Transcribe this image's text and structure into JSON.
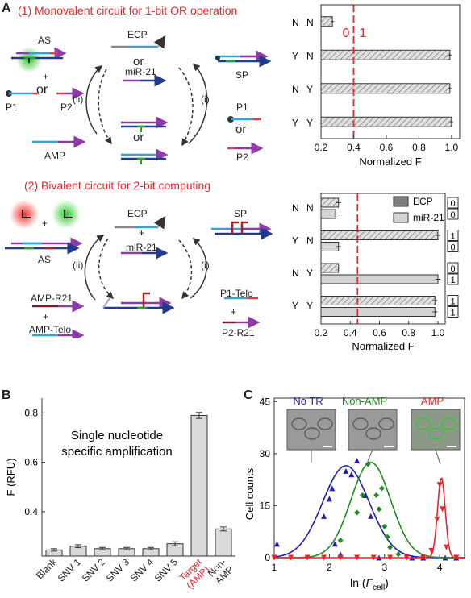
{
  "panel_a": {
    "letter": "A",
    "title1": "(1) Monovalent circuit for 1-bit  OR operation",
    "title2": "(2) Bivalent circuit for 2-bit computing",
    "diagram1": {
      "as": "AS",
      "plus": "+",
      "or1": "or",
      "p1": "P1",
      "p2": "P2",
      "amp": "AMP",
      "ecp": "ECP",
      "or2": "or",
      "mir": "miR-21",
      "sp": "SP",
      "p1r": "P1",
      "or3": "or",
      "p2r": "P2",
      "step_ii": "(ii)",
      "step_i": "(i)",
      "or_mid": "or"
    },
    "diagram2": {
      "as": "AS",
      "plus1": "+",
      "ecp": "ECP",
      "plus2": "+",
      "mir": "miR-21",
      "sp": "SP",
      "amp_r21": "AMP-R21",
      "plus3": "+",
      "amp_telo": "AMP-Telo",
      "p1_telo": "P1-Telo",
      "plus4": "+",
      "p2_r21": "P2-R21",
      "step_ii": "(ii)",
      "step_i": "(i)"
    }
  },
  "panel_b": {
    "letter": "B"
  },
  "panel_c": {
    "letter": "C"
  },
  "chart_data": [
    {
      "type": "bar",
      "orientation": "horizontal",
      "categories": [
        [
          "Y",
          "Y"
        ],
        [
          "N",
          "Y"
        ],
        [
          "Y",
          "N"
        ],
        [
          "N",
          "N"
        ]
      ],
      "values": [
        1.0,
        0.99,
        0.99,
        0.27
      ],
      "errors": [
        0.01,
        0.01,
        0.01,
        0.01
      ],
      "xlabel": "Normalized F",
      "xticks": [
        "0.2",
        "0.4",
        "0.6",
        "0.8",
        "1.0"
      ],
      "xlim": [
        0.2,
        1.05
      ],
      "threshold": 0.4,
      "threshold_labels": [
        "0",
        "1"
      ],
      "bar_color": "#d9d9d9"
    },
    {
      "type": "bar",
      "orientation": "horizontal",
      "categories": [
        [
          "Y",
          "Y"
        ],
        [
          "N",
          "Y"
        ],
        [
          "Y",
          "N"
        ],
        [
          "N",
          "N"
        ]
      ],
      "series": [
        {
          "name": "ECP",
          "color": "#888888",
          "values": [
            0.98,
            0.32,
            1.0,
            0.32
          ],
          "bits": [
            "1",
            "0",
            "1",
            "0"
          ]
        },
        {
          "name": "miR-21",
          "color": "#d4d4d4",
          "values": [
            0.98,
            1.0,
            0.32,
            0.3
          ],
          "bits": [
            "1",
            "1",
            "0",
            "0"
          ]
        }
      ],
      "xlabel": "Normalized F",
      "xticks": [
        "0.2",
        "0.4",
        "0.6",
        "0.8",
        "1.0"
      ],
      "xlim": [
        0.2,
        1.05
      ],
      "threshold": 0.45
    },
    {
      "type": "bar",
      "categories": [
        "Blank",
        "SNV 1",
        "SNV 2",
        "SNV 3",
        "SNV 4",
        "SNV 5",
        "Target (AMP)",
        "Non-AMP"
      ],
      "category_lines": [
        [
          "Blank"
        ],
        [
          "SNV 1"
        ],
        [
          "SNV 2"
        ],
        [
          "SNV 3"
        ],
        [
          "SNV 4"
        ],
        [
          "SNV 5"
        ],
        [
          "Target",
          "(AMP)"
        ],
        [
          "Non-",
          "AMP"
        ]
      ],
      "highlight": [
        6
      ],
      "values": [
        0.245,
        0.26,
        0.25,
        0.25,
        0.25,
        0.27,
        0.79,
        0.33
      ],
      "errors": [
        0.005,
        0.006,
        0.005,
        0.005,
        0.005,
        0.008,
        0.012,
        0.008
      ],
      "ylabel": "F (RFU)",
      "yticks": [
        "0.4",
        "0.6",
        "0.8"
      ],
      "ylim": [
        0.22,
        0.86
      ],
      "annotation": [
        "Single nucleotide",
        "specific amplification"
      ],
      "bar_color": "#d9d9d9"
    },
    {
      "type": "scatter",
      "xlabel": "ln (F_cell)",
      "ylabel": "Cell counts",
      "xticks": [
        "1",
        "2",
        "3",
        "4"
      ],
      "yticks": [
        "0",
        "15",
        "30",
        "45"
      ],
      "xlim": [
        1,
        4.45
      ],
      "ylim": [
        0,
        46
      ],
      "series": [
        {
          "name": "No TR",
          "color": "#1f1fb4",
          "marker": "triangle",
          "fit": {
            "mu": 2.3,
            "sigma": 0.42,
            "amp": 26.5
          },
          "points": [
            [
              1.05,
              4
            ],
            [
              1.9,
              12
            ],
            [
              2.0,
              17
            ],
            [
              2.05,
              20
            ],
            [
              2.1,
              4
            ],
            [
              2.2,
              1
            ],
            [
              2.3,
              25
            ],
            [
              2.4,
              24
            ],
            [
              2.5,
              28
            ],
            [
              2.65,
              18
            ],
            [
              2.75,
              12
            ],
            [
              2.9,
              0
            ],
            [
              3.5,
              0
            ],
            [
              3.7,
              0
            ],
            [
              4.1,
              0
            ],
            [
              4.3,
              0
            ]
          ]
        },
        {
          "name": "Non-AMP",
          "color": "#1f8a1f",
          "marker": "diamond",
          "fit": {
            "mu": 2.75,
            "sigma": 0.36,
            "amp": 27.5
          },
          "points": [
            [
              2.2,
              5
            ],
            [
              2.5,
              13
            ],
            [
              2.6,
              18
            ],
            [
              2.7,
              27
            ],
            [
              2.85,
              18
            ],
            [
              2.9,
              14
            ],
            [
              2.95,
              20
            ],
            [
              3.0,
              9
            ],
            [
              3.05,
              6
            ],
            [
              3.1,
              3
            ],
            [
              3.25,
              1
            ]
          ]
        },
        {
          "name": "AMP",
          "color": "#e8262b",
          "marker": "triangle-down",
          "fit": {
            "mu": 4.03,
            "sigma": 0.07,
            "amp": 23
          },
          "points": [
            [
              1.0,
              0
            ],
            [
              1.3,
              0
            ],
            [
              1.6,
              0
            ],
            [
              1.9,
              0
            ],
            [
              2.2,
              0
            ],
            [
              2.5,
              0
            ],
            [
              2.8,
              0
            ],
            [
              3.1,
              0
            ],
            [
              3.4,
              0
            ],
            [
              3.7,
              0
            ],
            [
              3.85,
              2
            ],
            [
              3.95,
              11
            ],
            [
              4.0,
              21
            ],
            [
              4.05,
              14
            ],
            [
              4.12,
              3
            ],
            [
              4.3,
              0
            ]
          ]
        }
      ]
    }
  ]
}
